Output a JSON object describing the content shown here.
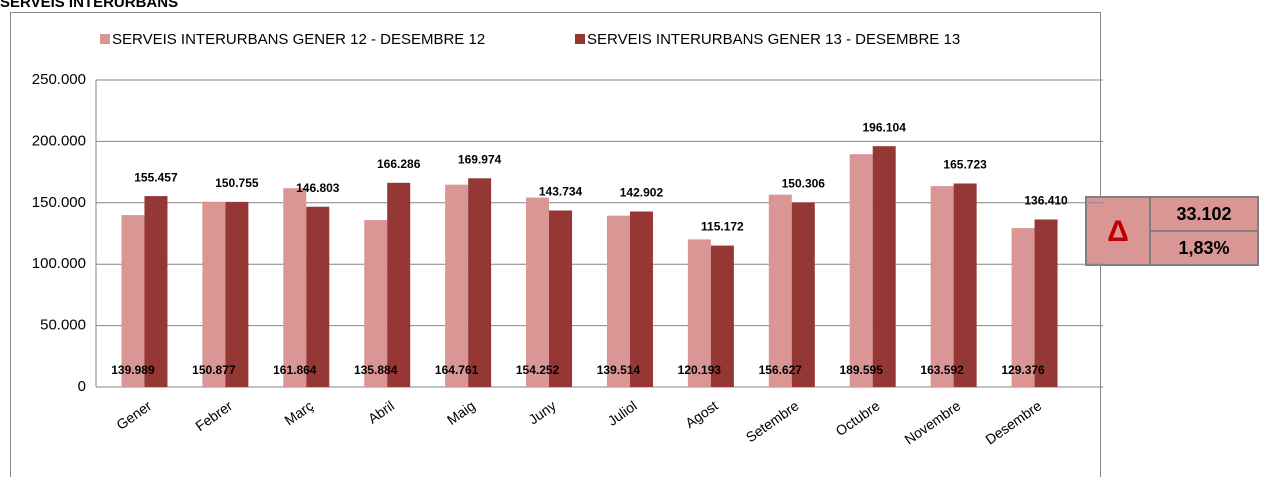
{
  "chart_data": {
    "type": "bar",
    "title": "SERVEIS INTERURBANS",
    "categories": [
      "Gener",
      "Febrer",
      "Març",
      "Abril",
      "Maig",
      "Juny",
      "Juliol",
      "Agost",
      "Setembre",
      "Octubre",
      "Novembre",
      "Desembre"
    ],
    "series": [
      {
        "name": "SERVEIS INTERURBANS GENER 12 - DESEMBRE 12",
        "color": "#d99694",
        "values": [
          139989,
          150877,
          161864,
          135884,
          164761,
          154252,
          139514,
          120193,
          156627,
          189595,
          163592,
          129376
        ],
        "value_labels": [
          "139.989",
          "150.877",
          "161.864",
          "135.884",
          "164.761",
          "154.252",
          "139.514",
          "120.193",
          "156.627",
          "189.595",
          "163.592",
          "129.376"
        ]
      },
      {
        "name": "SERVEIS INTERURBANS GENER 13 - DESEMBRE 13",
        "color": "#953735",
        "values": [
          155457,
          150755,
          146803,
          166286,
          169974,
          143734,
          142902,
          115172,
          150306,
          196104,
          165723,
          136410
        ],
        "value_labels": [
          "155.457",
          "150.755",
          "146.803",
          "166.286",
          "169.974",
          "143.734",
          "142.902",
          "115.172",
          "150.306",
          "196.104",
          "165.723",
          "136.410"
        ]
      }
    ],
    "ylim": [
      0,
      250000
    ],
    "yticks": [
      0,
      {
        "value": 50000,
        "label": "50.000"
      },
      {
        "value": 100000,
        "label": "100.000"
      },
      {
        "value": 150000,
        "label": "150.000"
      },
      {
        "value": 200000,
        "label": "200.000"
      },
      {
        "value": 250000,
        "label": "250.000"
      }
    ],
    "grid": true,
    "annotations": [
      "Δ",
      "33.102",
      "1,83%"
    ]
  }
}
